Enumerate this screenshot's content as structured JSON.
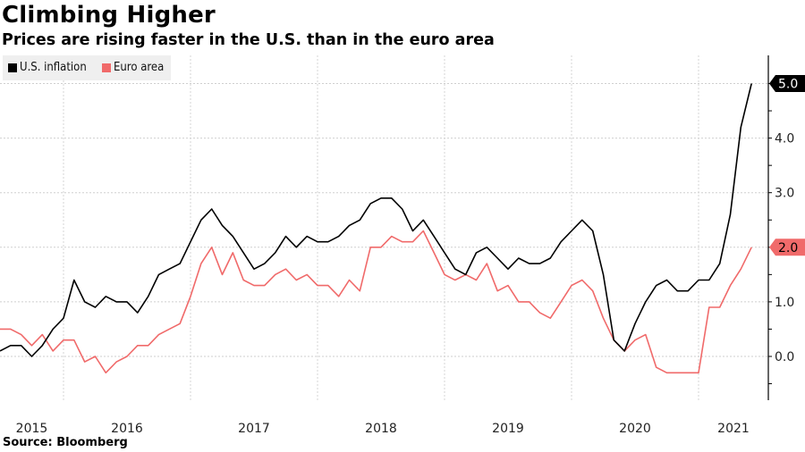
{
  "chart_data": {
    "type": "line",
    "title": "Climbing Higher",
    "subtitle": "Prices are rising faster in the U.S. than in the euro area",
    "source": "Source: Bloomberg",
    "xlabel": "",
    "ylabel": "",
    "x_start": "2015-06",
    "x_end": "2021-05",
    "x_tick_labels": [
      "2015",
      "2016",
      "2017",
      "2018",
      "2019",
      "2020",
      "2021"
    ],
    "y_tick_labels": [
      "0.0",
      "1.0",
      "2.0",
      "3.0",
      "4.0",
      "5.0"
    ],
    "y_ticks": [
      0,
      1,
      2,
      3,
      4,
      5
    ],
    "y_minor_ticks": [
      -0.5,
      0.5,
      1.5,
      2.5,
      3.5,
      4.5
    ],
    "ylim": [
      -0.8,
      5.5
    ],
    "y_axis_side": "right",
    "grid": true,
    "legend_position": "top-left",
    "series": [
      {
        "name": "U.S. inflation",
        "color": "#000000",
        "last_value_label": "5.0",
        "values": [
          0.1,
          0.2,
          0.2,
          0.0,
          0.2,
          0.5,
          0.7,
          1.4,
          1.0,
          0.9,
          1.1,
          1.0,
          1.0,
          0.8,
          1.1,
          1.5,
          1.6,
          1.7,
          2.1,
          2.5,
          2.7,
          2.4,
          2.2,
          1.9,
          1.6,
          1.7,
          1.9,
          2.2,
          2.0,
          2.2,
          2.1,
          2.1,
          2.2,
          2.4,
          2.5,
          2.8,
          2.9,
          2.9,
          2.7,
          2.3,
          2.5,
          2.2,
          1.9,
          1.6,
          1.5,
          1.9,
          2.0,
          1.8,
          1.6,
          1.8,
          1.7,
          1.7,
          1.8,
          2.1,
          2.3,
          2.5,
          2.3,
          1.5,
          0.3,
          0.1,
          0.6,
          1.0,
          1.3,
          1.4,
          1.2,
          1.2,
          1.4,
          1.4,
          1.7,
          2.6,
          4.2,
          5.0
        ]
      },
      {
        "name": "Euro area",
        "color": "#f06a6a",
        "last_value_label": "2.0",
        "values": [
          0.5,
          0.5,
          0.4,
          0.2,
          0.4,
          0.1,
          0.3,
          0.3,
          -0.1,
          0.0,
          -0.3,
          -0.1,
          0.0,
          0.2,
          0.2,
          0.4,
          0.5,
          0.6,
          1.1,
          1.7,
          2.0,
          1.5,
          1.9,
          1.4,
          1.3,
          1.3,
          1.5,
          1.6,
          1.4,
          1.5,
          1.3,
          1.3,
          1.1,
          1.4,
          1.2,
          2.0,
          2.0,
          2.2,
          2.1,
          2.1,
          2.3,
          1.9,
          1.5,
          1.4,
          1.5,
          1.4,
          1.7,
          1.2,
          1.3,
          1.0,
          1.0,
          0.8,
          0.7,
          1.0,
          1.3,
          1.4,
          1.2,
          0.7,
          0.3,
          0.1,
          0.3,
          0.4,
          -0.2,
          -0.3,
          -0.3,
          -0.3,
          -0.3,
          0.9,
          0.9,
          1.3,
          1.6,
          2.0
        ]
      }
    ]
  }
}
